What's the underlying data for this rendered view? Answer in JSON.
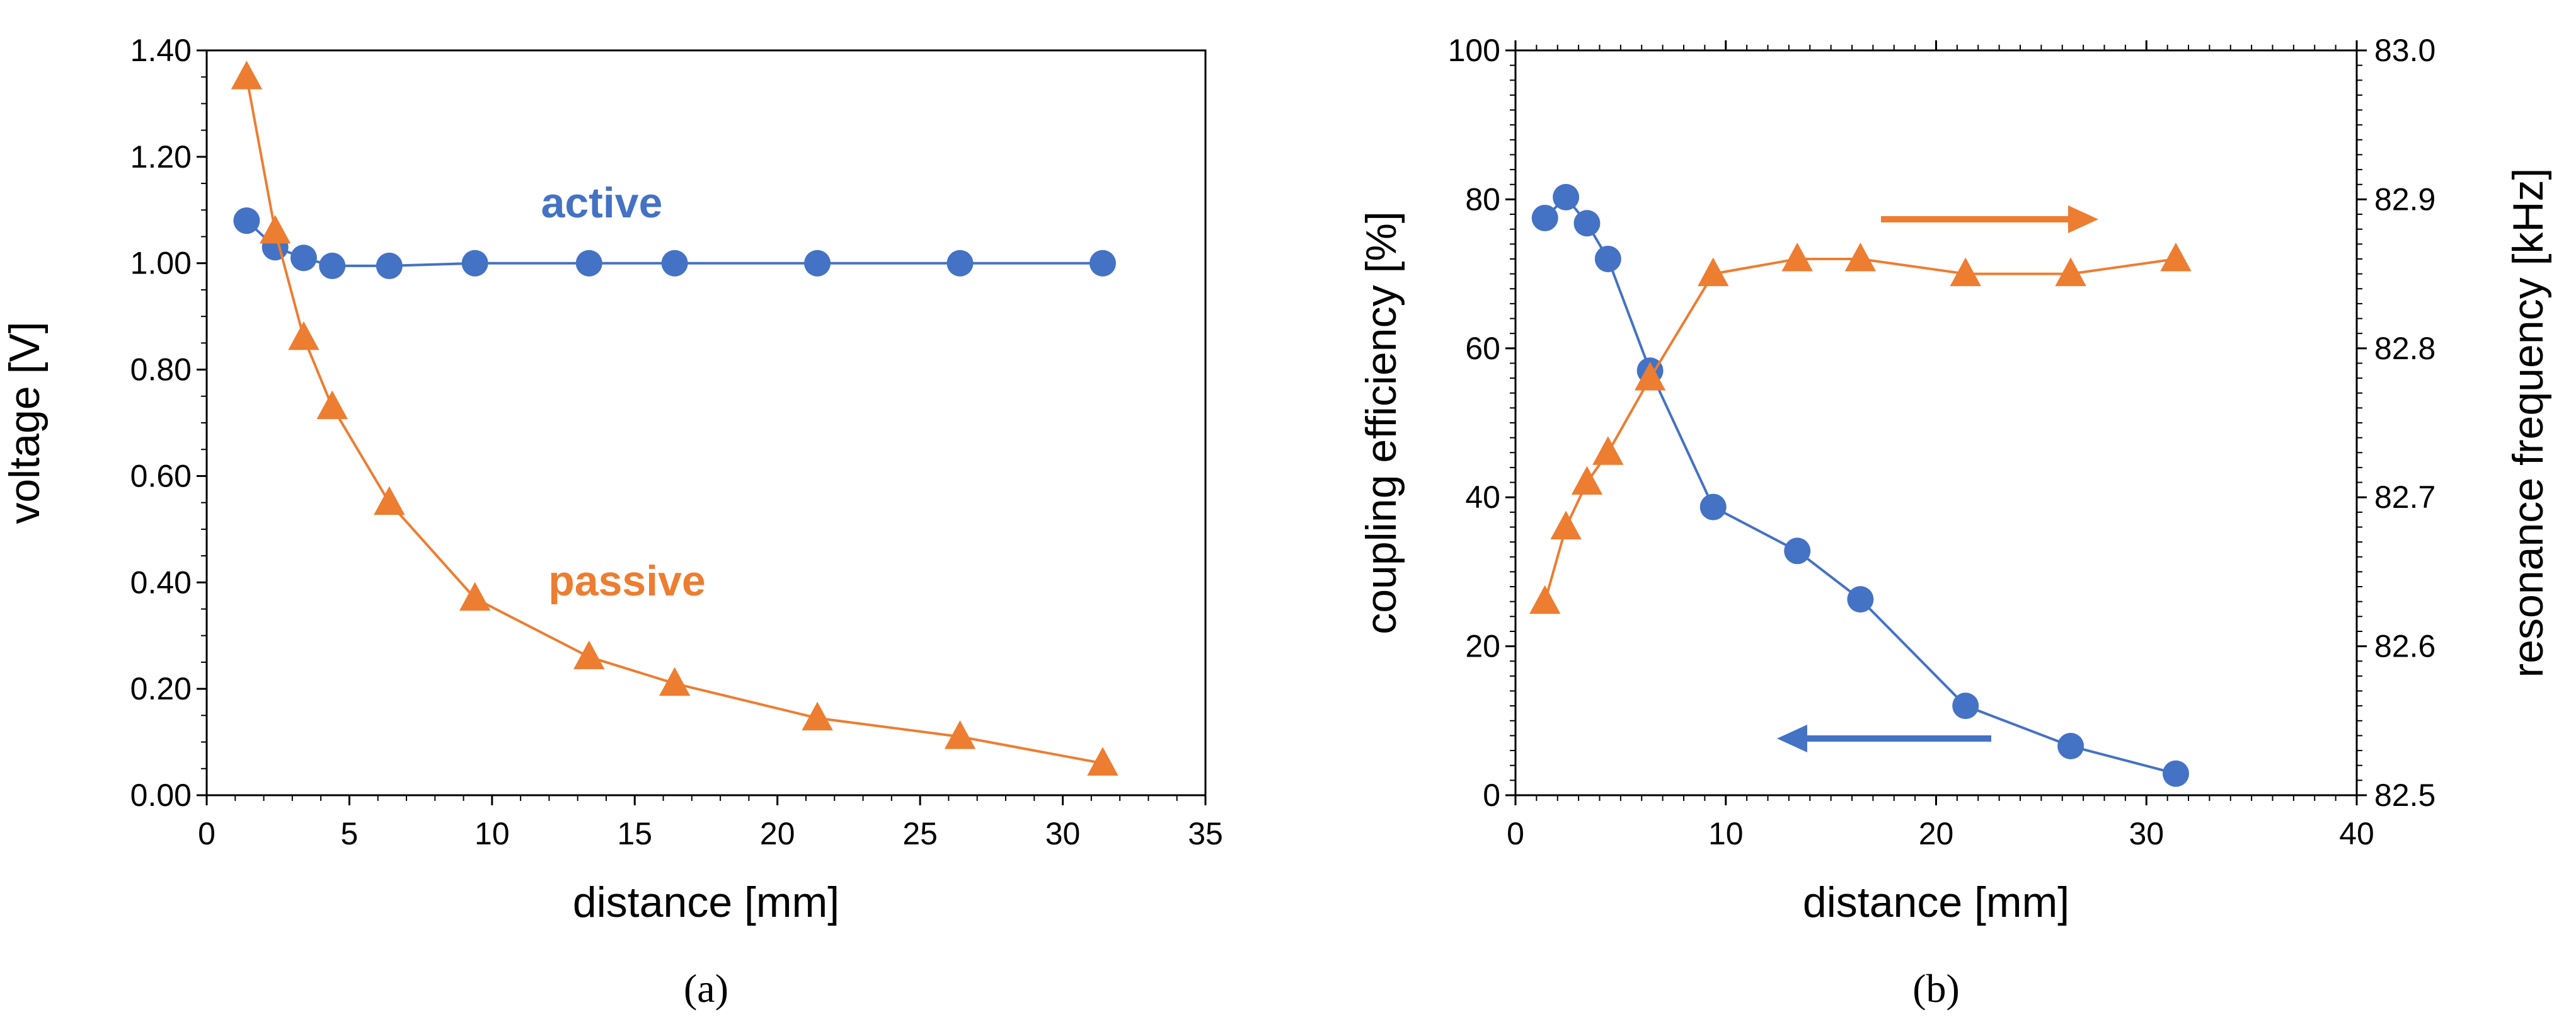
{
  "chart_data": [
    {
      "type": "line",
      "panel_label": "(a)",
      "xlabel": "distance [mm]",
      "ylabel": "voltage [V]",
      "xlim": [
        0,
        35
      ],
      "ylim": [
        0,
        1.4
      ],
      "x_ticks": [
        "0",
        "5",
        "10",
        "15",
        "20",
        "25",
        "30",
        "35"
      ],
      "y_ticks": [
        "0.00",
        "0.20",
        "0.40",
        "0.60",
        "0.80",
        "1.00",
        "1.20",
        "1.40"
      ],
      "series": [
        {
          "name": "active",
          "color": "#4472C4",
          "marker": "circle",
          "axis": "left",
          "x": [
            1.4,
            2.4,
            3.4,
            4.4,
            6.4,
            9.4,
            13.4,
            16.4,
            21.4,
            26.4,
            31.4
          ],
          "y": [
            1.08,
            1.03,
            1.01,
            0.995,
            0.995,
            1.0,
            1.0,
            1.0,
            1.0,
            1.0,
            1.0
          ]
        },
        {
          "name": "passive",
          "color": "#ED7D31",
          "marker": "triangle",
          "axis": "left",
          "x": [
            1.4,
            2.4,
            3.4,
            4.4,
            6.4,
            9.4,
            13.4,
            16.4,
            21.4,
            26.4,
            31.4
          ],
          "y": [
            1.35,
            1.06,
            0.86,
            0.73,
            0.55,
            0.37,
            0.26,
            0.21,
            0.145,
            0.11,
            0.06
          ]
        }
      ]
    },
    {
      "type": "line",
      "panel_label": "(b)",
      "xlabel": "distance [mm]",
      "ylabel": "coupling efficiency [%]",
      "y2label": "resonance frequency [kHz]",
      "xlim": [
        0,
        40
      ],
      "ylim": [
        0,
        100
      ],
      "y2lim": [
        82.5,
        83.0
      ],
      "x_ticks": [
        "0",
        "10",
        "20",
        "30",
        "40"
      ],
      "y_ticks": [
        "0",
        "20",
        "40",
        "60",
        "80",
        "100"
      ],
      "y2_ticks": [
        "82.5",
        "82.6",
        "82.7",
        "82.8",
        "82.9",
        "83.0"
      ],
      "series": [
        {
          "name": "coupling efficiency",
          "color": "#4472C4",
          "marker": "circle",
          "axis": "left",
          "arrow": "left",
          "x": [
            1.4,
            2.4,
            3.4,
            4.4,
            6.4,
            9.4,
            13.4,
            16.4,
            21.4,
            26.4,
            31.4
          ],
          "y": [
            77.5,
            80.3,
            76.8,
            72.0,
            57.0,
            38.7,
            32.8,
            26.3,
            12.0,
            6.6,
            2.9
          ]
        },
        {
          "name": "resonance frequency",
          "color": "#ED7D31",
          "marker": "triangle",
          "axis": "right",
          "arrow": "right",
          "x": [
            1.4,
            2.4,
            3.4,
            4.4,
            6.4,
            9.4,
            13.4,
            16.4,
            21.4,
            26.4,
            31.4
          ],
          "y": [
            82.63,
            82.68,
            82.71,
            82.73,
            82.78,
            82.85,
            82.86,
            82.86,
            82.85,
            82.85,
            82.86
          ]
        }
      ]
    }
  ]
}
